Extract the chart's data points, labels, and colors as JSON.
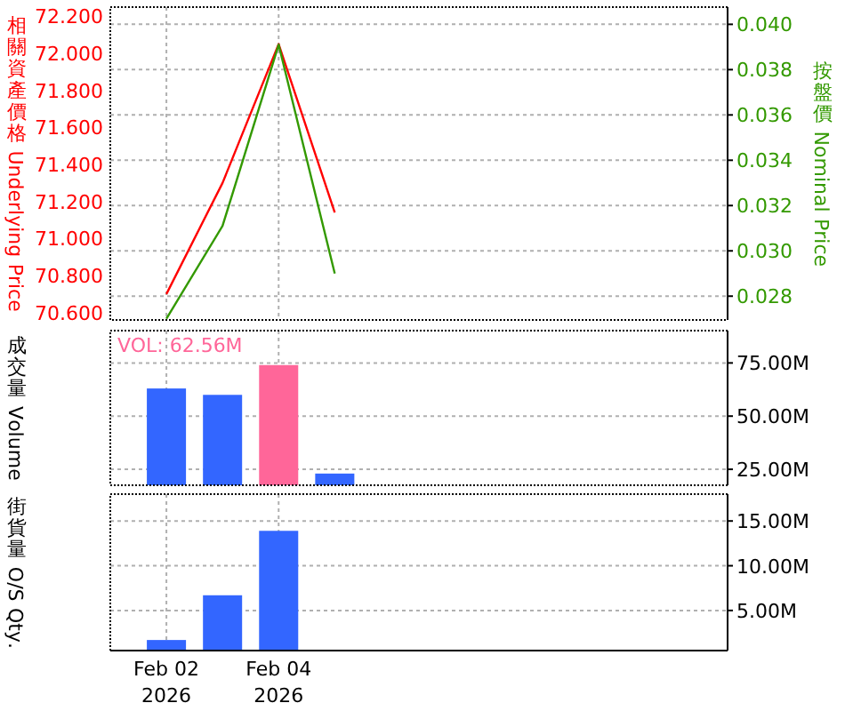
{
  "chart_data": [
    {
      "type": "line",
      "ylabel": "相關資產價格 Underlying Price",
      "y2label": "按盤價 Nominal Price",
      "x": [
        "2026-02-02",
        "2026-02-03",
        "2026-02-04",
        "2026-02-05"
      ],
      "xlim": [
        "2026-02-01",
        "2026-02-12"
      ],
      "xticks": [
        {
          "value": "2026-02-02",
          "label": null
        },
        {
          "value": "2026-02-04",
          "label": null
        }
      ],
      "ylim": [
        70.56,
        72.25
      ],
      "yticks": [
        {
          "value": 70.6,
          "label": "70.600"
        },
        {
          "value": 70.8,
          "label": "70.800"
        },
        {
          "value": 71.0,
          "label": "71.000"
        },
        {
          "value": 71.2,
          "label": "71.200"
        },
        {
          "value": 71.4,
          "label": "71.400"
        },
        {
          "value": 71.6,
          "label": "71.600"
        },
        {
          "value": 71.8,
          "label": "71.800"
        },
        {
          "value": 72.0,
          "label": "72.000"
        },
        {
          "value": 72.2,
          "label": "72.200"
        }
      ],
      "y2lim": [
        0.02695,
        0.04076
      ],
      "y2ticks": [
        {
          "value": 0.028,
          "label": "0.028"
        },
        {
          "value": 0.03,
          "label": "0.030"
        },
        {
          "value": 0.032,
          "label": "0.032"
        },
        {
          "value": 0.034,
          "label": "0.034"
        },
        {
          "value": 0.036,
          "label": "0.036"
        },
        {
          "value": 0.038,
          "label": "0.038"
        },
        {
          "value": 0.04,
          "label": "0.040"
        }
      ],
      "grid": true,
      "tick_labels": "y",
      "series": [
        {
          "color": "#ff0000",
          "values": [
            70.7,
            71.3,
            72.05,
            71.14
          ]
        },
        {
          "color": "#339900",
          "axis": "y2",
          "values": [
            0.027,
            0.0311,
            0.0391,
            0.029
          ]
        }
      ]
    },
    {
      "type": "bar",
      "ylabel": "成交量 Volume",
      "x": [
        "2026-02-02",
        "2026-02-03",
        "2026-02-04",
        "2026-02-05"
      ],
      "xlim": [
        "2026-02-01",
        "2026-02-12"
      ],
      "xticks": [
        {
          "value": "2026-02-02",
          "label": null
        },
        {
          "value": "2026-02-04",
          "label": null
        }
      ],
      "y2lim": [
        17.5,
        90.2
      ],
      "y2ticks": [
        {
          "value": 25,
          "label": "25.00M"
        },
        {
          "value": 50,
          "label": "50.00M"
        },
        {
          "value": 75,
          "label": "75.00M"
        }
      ],
      "grid": true,
      "tick_labels": "y",
      "annotations": [
        "VOL: 62.56M"
      ],
      "series": [
        {
          "axis": "y2",
          "colors": [
            "#3366ff",
            "#3366ff",
            "#ff6699",
            "#3366ff"
          ],
          "values": [
            63,
            60,
            74,
            23
          ]
        }
      ]
    },
    {
      "type": "bar",
      "ylabel": "街貨量 O/S Qty.",
      "x": [
        "2026-02-02",
        "2026-02-03",
        "2026-02-04"
      ],
      "xlim": [
        "2026-02-01",
        "2026-02-12"
      ],
      "xticks": [
        {
          "value": "2026-02-02",
          "label": "Feb 02 2026"
        },
        {
          "value": "2026-02-04",
          "label": "Feb 04 2026"
        }
      ],
      "y2lim": [
        0.52,
        18
      ],
      "y2ticks": [
        {
          "value": 5,
          "label": "5.00M"
        },
        {
          "value": 10,
          "label": "10.00M"
        },
        {
          "value": 15,
          "label": "15.00M"
        }
      ],
      "grid": true,
      "series": [
        {
          "axis": "y2",
          "color": "#3366ff",
          "values": [
            1.7,
            6.7,
            13.9
          ]
        }
      ]
    }
  ]
}
